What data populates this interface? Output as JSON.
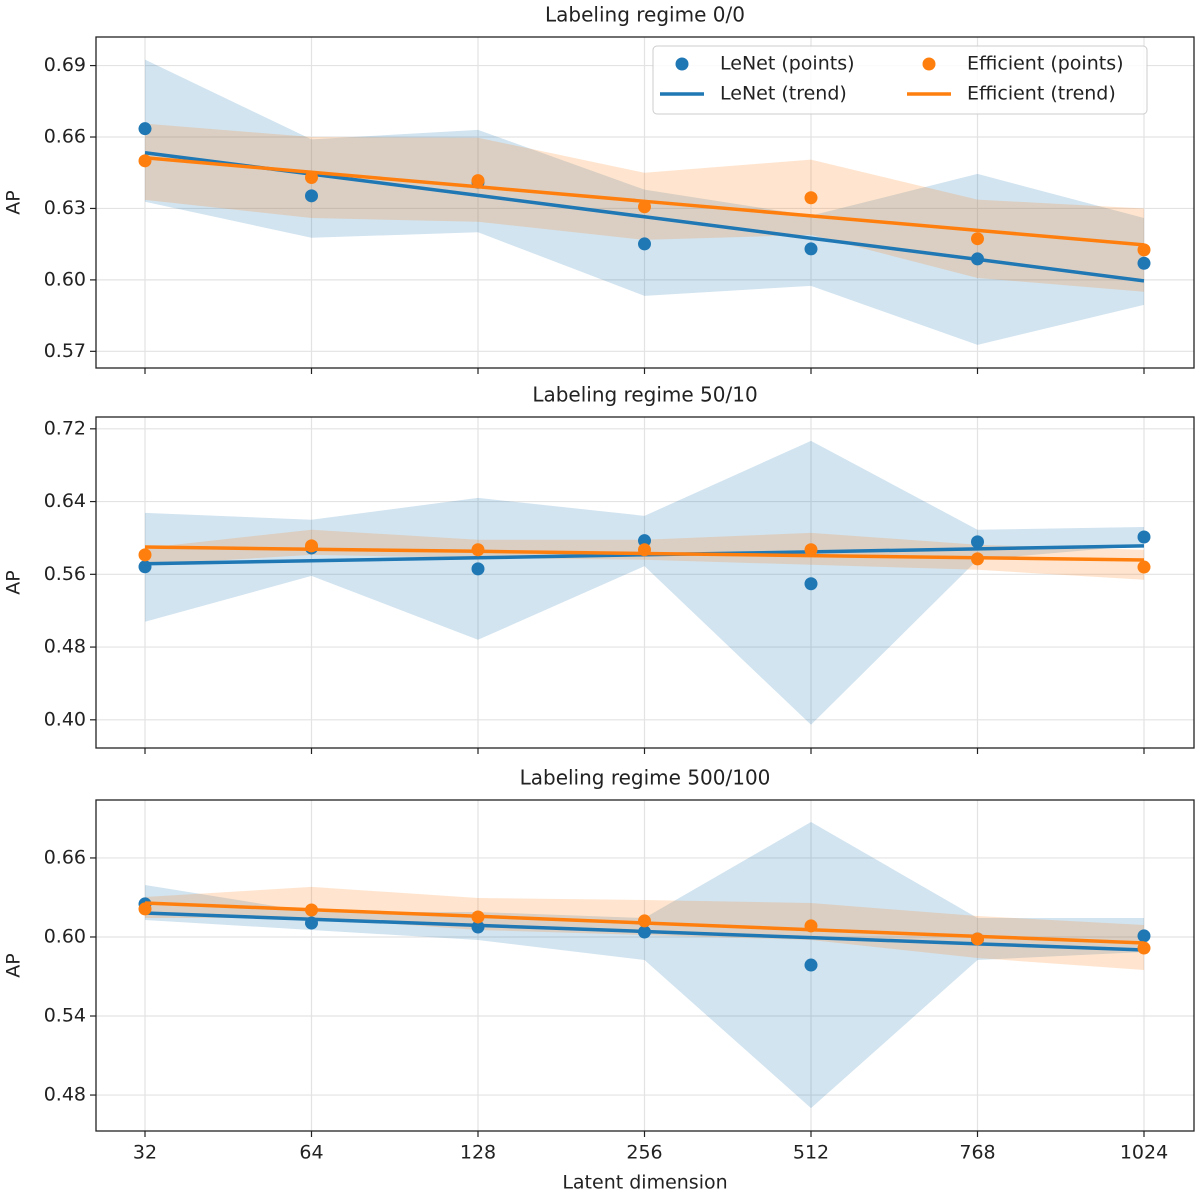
{
  "chart_data": [
    {
      "type": "line",
      "title": "Labeling regime 0/0",
      "ylabel": "AP",
      "ylim": [
        0.563,
        0.702
      ],
      "yticks": [
        {
          "value": 0.57,
          "label": "0.57"
        },
        {
          "value": 0.6,
          "label": "0.60"
        },
        {
          "value": 0.63,
          "label": "0.63"
        },
        {
          "value": 0.66,
          "label": "0.66"
        },
        {
          "value": 0.69,
          "label": "0.69"
        }
      ],
      "grid": true,
      "legend": "upper right",
      "legend_columns": 2,
      "series": [
        {
          "name": "LeNet (points)",
          "color": "#1f77b4",
          "style": "scatter",
          "values": [
            0.6635,
            0.6353,
            0.641,
            0.6151,
            0.613,
            0.6088,
            0.607
          ],
          "lower": [
            0.6328,
            0.6177,
            0.62,
            0.5933,
            0.5975,
            0.5727,
            0.5895
          ],
          "upper": [
            0.6925,
            0.659,
            0.663,
            0.6379,
            0.627,
            0.6445,
            0.626
          ]
        },
        {
          "name": "LeNet (trend)",
          "color": "#1f77b4",
          "style": "line",
          "values": [
            0.6534,
            0.6444,
            0.6355,
            0.6265,
            0.6175,
            0.6086,
            0.5996
          ]
        },
        {
          "name": "Efficient (points)",
          "color": "#ff7f0e",
          "style": "scatter",
          "values": [
            0.65,
            0.643,
            0.6417,
            0.6307,
            0.6345,
            0.6173,
            0.6126
          ],
          "lower": [
            0.6336,
            0.626,
            0.6244,
            0.6168,
            0.6189,
            0.6008,
            0.595
          ],
          "upper": [
            0.6656,
            0.66,
            0.6597,
            0.645,
            0.6505,
            0.6337,
            0.63
          ]
        },
        {
          "name": "Efficient (trend)",
          "color": "#ff7f0e",
          "style": "line",
          "values": [
            0.6513,
            0.6452,
            0.6391,
            0.633,
            0.6269,
            0.6208,
            0.6147
          ]
        }
      ]
    },
    {
      "type": "line",
      "title": "Labeling regime 50/10",
      "ylabel": "AP",
      "ylim": [
        0.369,
        0.733
      ],
      "yticks": [
        {
          "value": 0.4,
          "label": "0.40"
        },
        {
          "value": 0.48,
          "label": "0.48"
        },
        {
          "value": 0.56,
          "label": "0.56"
        },
        {
          "value": 0.64,
          "label": "0.64"
        },
        {
          "value": 0.72,
          "label": "0.72"
        }
      ],
      "grid": true,
      "series": [
        {
          "color": "#1f77b4",
          "style": "scatter",
          "values": [
            0.5683,
            0.589,
            0.566,
            0.597,
            0.5496,
            0.5957,
            0.601
          ],
          "lower": [
            0.5078,
            0.5583,
            0.488,
            0.569,
            0.3945,
            0.576,
            0.592
          ],
          "upper": [
            0.6276,
            0.62,
            0.644,
            0.6243,
            0.7068,
            0.609,
            0.612
          ]
        },
        {
          "color": "#1f77b4",
          "style": "line",
          "values": [
            0.5716,
            0.5749,
            0.5782,
            0.5815,
            0.5847,
            0.588,
            0.5913
          ]
        },
        {
          "color": "#ff7f0e",
          "style": "scatter",
          "values": [
            0.5814,
            0.5913,
            0.587,
            0.587,
            0.587,
            0.577,
            0.568
          ],
          "lower": [
            0.5705,
            0.5814,
            0.578,
            0.576,
            0.5705,
            0.565,
            0.554
          ],
          "upper": [
            0.589,
            0.609,
            0.598,
            0.598,
            0.6056,
            0.5925,
            0.587
          ]
        },
        {
          "color": "#ff7f0e",
          "style": "line",
          "values": [
            0.59,
            0.5876,
            0.5853,
            0.5829,
            0.5805,
            0.5782,
            0.5758
          ]
        }
      ]
    },
    {
      "type": "line",
      "title": "Labeling regime 500/100",
      "ylabel": "AP",
      "xlabel": "Latent dimension",
      "categories": [
        "32",
        "64",
        "128",
        "256",
        "512",
        "768",
        "1024"
      ],
      "ylim": [
        0.4527,
        0.704
      ],
      "yticks": [
        {
          "value": 0.48,
          "label": "0.48"
        },
        {
          "value": 0.54,
          "label": "0.54"
        },
        {
          "value": 0.6,
          "label": "0.60"
        },
        {
          "value": 0.66,
          "label": "0.66"
        }
      ],
      "grid": true,
      "series": [
        {
          "color": "#1f77b4",
          "style": "scatter",
          "values": [
            0.6251,
            0.6106,
            0.6076,
            0.6038,
            0.5787,
            0.5985,
            0.6008
          ],
          "lower": [
            0.6129,
            0.6053,
            0.5977,
            0.5825,
            0.4701,
            0.5825,
            0.5886
          ],
          "upper": [
            0.6395,
            0.619,
            0.619,
            0.6144,
            0.6873,
            0.6144,
            0.6144
          ]
        },
        {
          "color": "#1f77b4",
          "style": "line",
          "values": [
            0.6182,
            0.6135,
            0.6088,
            0.6042,
            0.5995,
            0.5948,
            0.5901
          ]
        },
        {
          "color": "#ff7f0e",
          "style": "scatter",
          "values": [
            0.6213,
            0.6205,
            0.6152,
            0.6122,
            0.6084,
            0.5985,
            0.5916
          ],
          "lower": [
            0.6144,
            0.6144,
            0.6053,
            0.6015,
            0.5977,
            0.584,
            0.5749
          ],
          "upper": [
            0.6304,
            0.638,
            0.6296,
            0.6281,
            0.6258,
            0.6159,
            0.6091
          ]
        },
        {
          "color": "#ff7f0e",
          "style": "line",
          "values": [
            0.6258,
            0.6207,
            0.6157,
            0.6106,
            0.6055,
            0.6005,
            0.5954
          ]
        }
      ]
    }
  ]
}
